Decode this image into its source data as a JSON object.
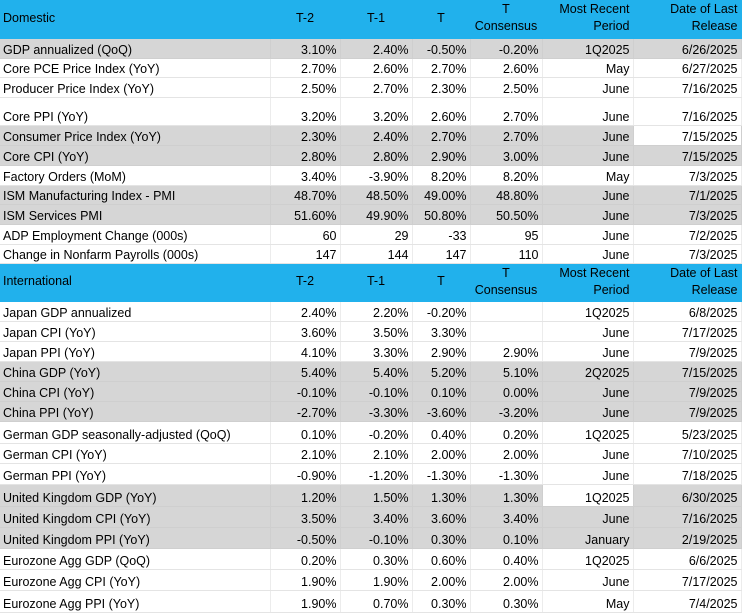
{
  "sections": [
    {
      "header": [
        "Domestic",
        "T-2",
        "T-1",
        "T",
        "T\nConsensus",
        "Most Recent\nPeriod",
        "Date of Last\nRelease"
      ],
      "rows": [
        [
          "GDP annualized (QoQ)",
          "3.10%",
          "2.40%",
          "-0.50%",
          "-0.20%",
          "1Q2025",
          "6/26/2025"
        ],
        [
          "Core PCE Price Index (YoY)",
          "2.70%",
          "2.60%",
          "2.70%",
          "2.60%",
          "May",
          "6/27/2025"
        ],
        [
          "Producer Price Index (YoY)",
          "2.50%",
          "2.70%",
          "2.30%",
          "2.50%",
          "June",
          "7/16/2025"
        ],
        [
          "Core PPI (YoY)",
          "3.20%",
          "3.20%",
          "2.60%",
          "2.70%",
          "June",
          "7/16/2025"
        ],
        [
          "Consumer Price Index (YoY)",
          "2.30%",
          "2.40%",
          "2.70%",
          "2.70%",
          "June",
          "7/15/2025"
        ],
        [
          "Core CPI  (YoY)",
          "2.80%",
          "2.80%",
          "2.90%",
          "3.00%",
          "June",
          "7/15/2025"
        ],
        [
          "Factory Orders (MoM)",
          "3.40%",
          "-3.90%",
          "8.20%",
          "8.20%",
          "May",
          "7/3/2025"
        ],
        [
          "ISM Manufacturing Index - PMI",
          "48.70%",
          "48.50%",
          "49.00%",
          "48.80%",
          "June",
          "7/1/2025"
        ],
        [
          "ISM Services PMI",
          "51.60%",
          "49.90%",
          "50.80%",
          "50.50%",
          "June",
          "7/3/2025"
        ],
        [
          "ADP Employment Change (000s)",
          "60",
          "29",
          "-33",
          "95",
          "June",
          "7/2/2025"
        ],
        [
          "Change in Nonfarm Payrolls (000s)",
          "147",
          "144",
          "147",
          "110",
          "June",
          "7/3/2025"
        ]
      ]
    },
    {
      "header": [
        "International",
        "T-2",
        "T-1",
        "T",
        "T\nConsensus",
        "Most Recent\nPeriod",
        "Date of Last\nRelease"
      ],
      "rows": [
        [
          "Japan GDP annualized",
          "2.40%",
          "2.20%",
          "-0.20%",
          null,
          "1Q2025",
          "6/8/2025"
        ],
        [
          "Japan CPI (YoY)",
          "3.60%",
          "3.50%",
          "3.30%",
          null,
          "June",
          "7/17/2025"
        ],
        [
          "Japan PPI (YoY)",
          "4.10%",
          "3.30%",
          "2.90%",
          "2.90%",
          "June",
          "7/9/2025"
        ],
        [
          "China GDP (YoY)",
          "5.40%",
          "5.40%",
          "5.20%",
          "5.10%",
          "2Q2025",
          "7/15/2025"
        ],
        [
          "China CPI (YoY)",
          "-0.10%",
          "-0.10%",
          "0.10%",
          "0.00%",
          "June",
          "7/9/2025"
        ],
        [
          "China PPI (YoY)",
          "-2.70%",
          "-3.30%",
          "-3.60%",
          "-3.20%",
          "June",
          "7/9/2025"
        ],
        [
          "German GDP seasonally-adjusted (QoQ)",
          "0.10%",
          "-0.20%",
          "0.40%",
          "0.20%",
          "1Q2025",
          "5/23/2025"
        ],
        [
          "German CPI (YoY)",
          "2.10%",
          "2.10%",
          "2.00%",
          "2.00%",
          "June",
          "7/10/2025"
        ],
        [
          "German PPI (YoY)",
          "-0.90%",
          "-1.20%",
          "-1.30%",
          "-1.30%",
          "June",
          "7/18/2025"
        ],
        [
          "United Kingdom GDP (YoY)",
          "1.20%",
          "1.50%",
          "1.30%",
          "1.30%",
          "1Q2025",
          "6/30/2025"
        ],
        [
          "United Kingdom CPI (YoY)",
          "3.50%",
          "3.40%",
          "3.60%",
          "3.40%",
          "June",
          "7/16/2025"
        ],
        [
          "United Kingdom  PPI (YoY)",
          "-0.50%",
          "-0.10%",
          "0.30%",
          "0.10%",
          "January",
          "2/19/2025"
        ],
        [
          "Eurozone Agg GDP (QoQ)",
          "0.20%",
          "0.30%",
          "0.60%",
          "0.40%",
          "1Q2025",
          "6/6/2025"
        ],
        [
          "Eurozone Agg CPI (YoY)",
          "1.90%",
          "1.90%",
          "2.00%",
          "2.00%",
          "June",
          "7/17/2025"
        ],
        [
          "Eurozone Agg PPI (YoY)",
          "1.90%",
          "0.70%",
          "0.30%",
          "0.30%",
          "May",
          "7/4/2025"
        ]
      ]
    }
  ]
}
